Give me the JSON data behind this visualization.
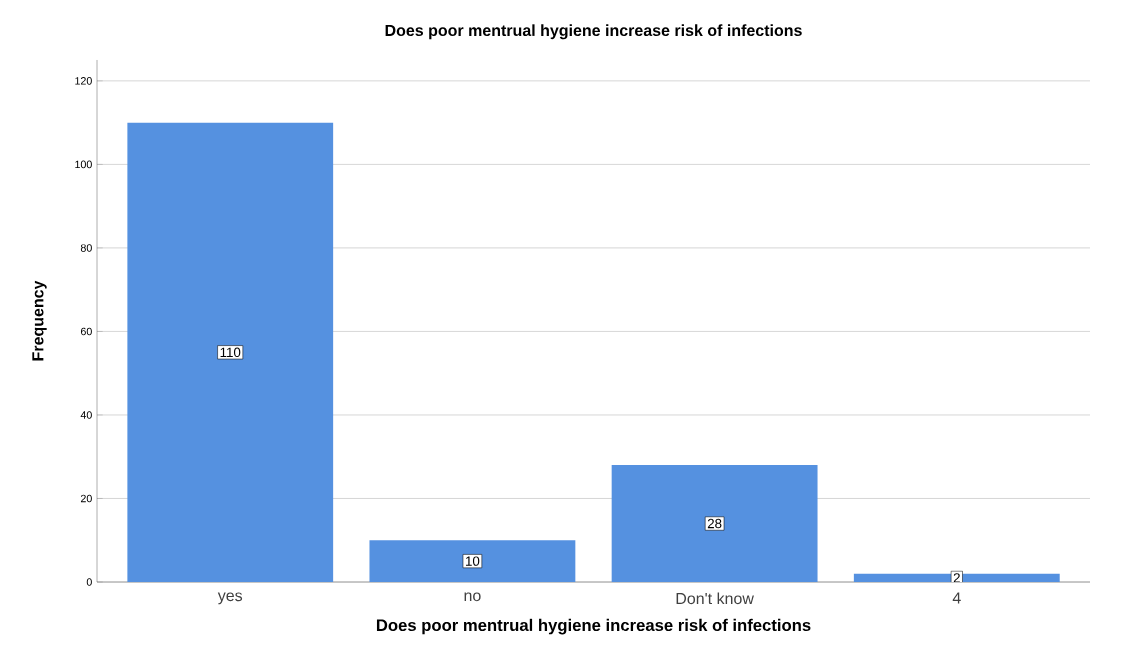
{
  "chart_data": {
    "type": "bar",
    "title": "Does poor mentrual hygiene increase risk of infections",
    "xlabel": "Does poor mentrual hygiene increase risk of infections",
    "ylabel": "Frequency",
    "categories": [
      "yes",
      "no",
      "Don't know",
      "4"
    ],
    "values": [
      110,
      10,
      28,
      2
    ],
    "color": "#5591e0",
    "ylim": [
      0,
      125
    ],
    "yticks": [
      0,
      20,
      40,
      60,
      80,
      100,
      120
    ],
    "grid": "y",
    "data_labels": true
  }
}
